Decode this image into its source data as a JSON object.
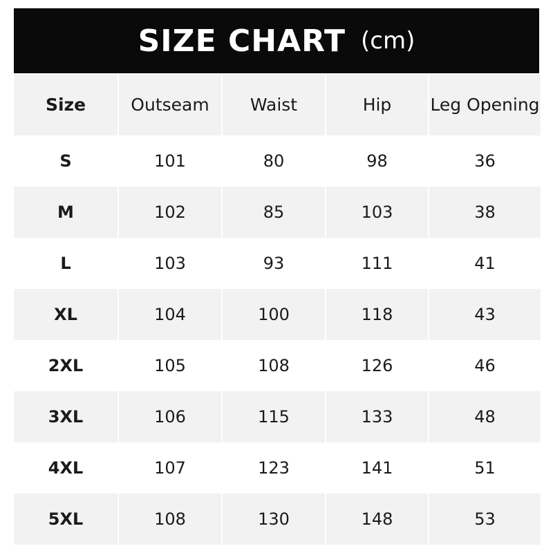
{
  "title": {
    "main": "SIZE CHART",
    "unit": "(cm)"
  },
  "columns": [
    "Size",
    "Outseam",
    "Waist",
    "Hip",
    "Leg Opening"
  ],
  "rows": [
    [
      "S",
      "101",
      "80",
      "98",
      "36"
    ],
    [
      "M",
      "102",
      "85",
      "103",
      "38"
    ],
    [
      "L",
      "103",
      "93",
      "111",
      "41"
    ],
    [
      "XL",
      "104",
      "100",
      "118",
      "43"
    ],
    [
      "2XL",
      "105",
      "108",
      "126",
      "46"
    ],
    [
      "3XL",
      "106",
      "115",
      "133",
      "48"
    ],
    [
      "4XL",
      "107",
      "123",
      "141",
      "51"
    ],
    [
      "5XL",
      "108",
      "130",
      "148",
      "53"
    ]
  ],
  "colors": {
    "header_bg": "#0a0a0a",
    "stripe": "#f2f2f2"
  }
}
